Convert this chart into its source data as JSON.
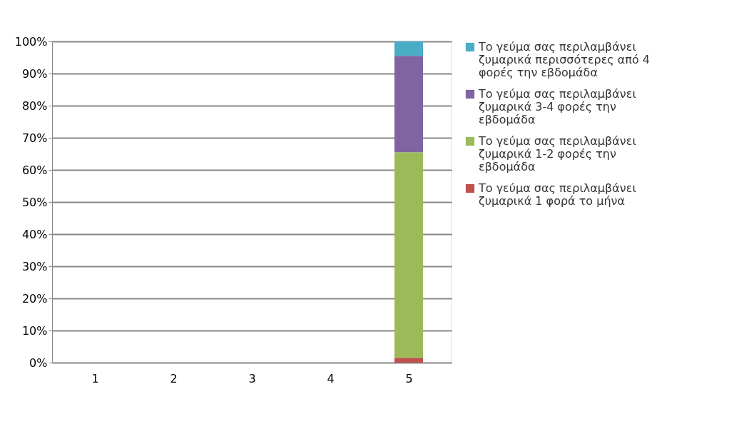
{
  "chart_data": {
    "type": "bar",
    "stacked": true,
    "categories": [
      "1",
      "2",
      "3",
      "4",
      "5"
    ],
    "series": [
      {
        "name": "Το γεύμα σας περιλαμβάνει ζυμαρικά 1 φορά το μήνα",
        "color": "#c0504d",
        "values": [
          null,
          null,
          null,
          null,
          1.5
        ]
      },
      {
        "name": "Το γεύμα σας περιλαμβάνει ζυμαρικά 1-2 φορές την εβδομάδα",
        "color": "#9bbb59",
        "values": [
          null,
          null,
          null,
          null,
          64
        ]
      },
      {
        "name": "Το γεύμα σας περιλαμβάνει ζυμαρικά 3-4 φορές την εβδομάδα",
        "color": "#8064a2",
        "values": [
          null,
          null,
          null,
          null,
          30
        ]
      },
      {
        "name": "Το γεύμα σας περιλαμβάνει ζυμαρικά περισσότερες από 4 φορές την εβδομάδα",
        "color": "#4bacc6",
        "values": [
          null,
          null,
          null,
          null,
          4.5
        ]
      }
    ],
    "ylim": [
      0,
      100
    ],
    "yticks": [
      {
        "value": 0,
        "label": "0%"
      },
      {
        "value": 10,
        "label": "10%"
      },
      {
        "value": 20,
        "label": "20%"
      },
      {
        "value": 30,
        "label": "30%"
      },
      {
        "value": 40,
        "label": "40%"
      },
      {
        "value": 50,
        "label": "50%"
      },
      {
        "value": 60,
        "label": "60%"
      },
      {
        "value": 70,
        "label": "70%"
      },
      {
        "value": 80,
        "label": "80%"
      },
      {
        "value": 90,
        "label": "90%"
      },
      {
        "value": 100,
        "label": "100%"
      }
    ],
    "grid": "y",
    "legend": "right"
  }
}
